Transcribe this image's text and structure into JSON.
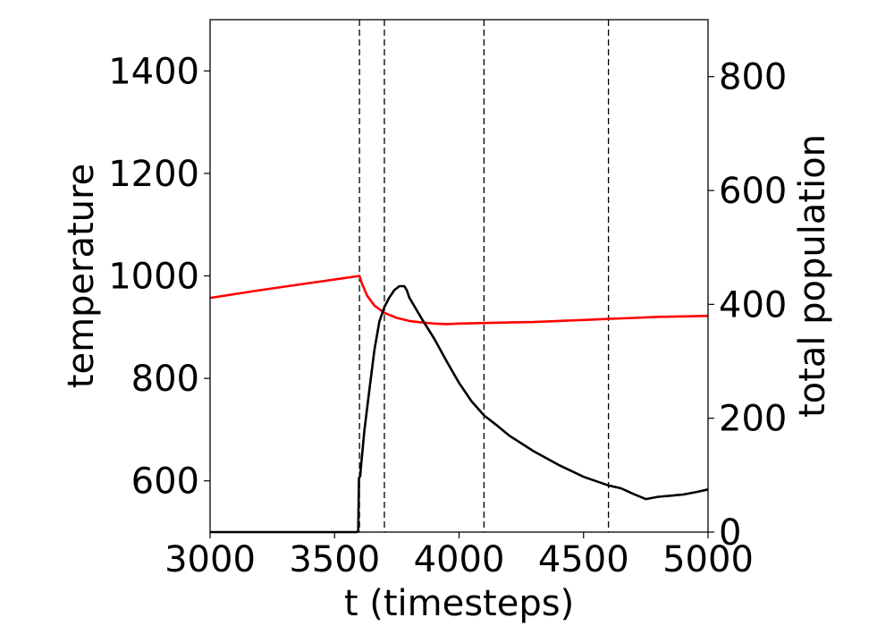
{
  "chart_data": {
    "type": "line",
    "xlabel": "t (timesteps)",
    "ylabel_left": "temperature",
    "ylabel_right": "total population",
    "xlim": [
      3000,
      5000
    ],
    "ylim_left": [
      500,
      1500
    ],
    "ylim_right": [
      0,
      900
    ],
    "xticks": [
      3000,
      3500,
      4000,
      4500,
      5000
    ],
    "yticks_left": [
      600,
      800,
      1000,
      1200,
      1400
    ],
    "yticks_right": [
      0,
      200,
      400,
      600,
      800
    ],
    "grid": false,
    "vlines": [
      3600,
      3700,
      4100,
      4600
    ],
    "colors": {
      "temperature": "#ff0000",
      "population": "#000000",
      "vline": "#000000"
    },
    "series": [
      {
        "axis": "left",
        "points": [
          [
            3000,
            957
          ],
          [
            3200,
            972
          ],
          [
            3400,
            986
          ],
          [
            3600,
            1000
          ],
          [
            3610,
            985
          ],
          [
            3630,
            962
          ],
          [
            3660,
            942
          ],
          [
            3700,
            928
          ],
          [
            3750,
            918
          ],
          [
            3800,
            912
          ],
          [
            3850,
            909
          ],
          [
            3900,
            907
          ],
          [
            3950,
            906
          ],
          [
            4000,
            907
          ],
          [
            4100,
            908
          ],
          [
            4200,
            909
          ],
          [
            4300,
            910
          ],
          [
            4400,
            912
          ],
          [
            4500,
            914
          ],
          [
            4600,
            916
          ],
          [
            4700,
            918
          ],
          [
            4800,
            920
          ],
          [
            4900,
            921
          ],
          [
            5000,
            922
          ]
        ]
      },
      {
        "axis": "right",
        "points": [
          [
            3000,
            0
          ],
          [
            3590,
            0
          ],
          [
            3595,
            2
          ],
          [
            3598,
            95
          ],
          [
            3603,
            98
          ],
          [
            3606,
            115
          ],
          [
            3620,
            180
          ],
          [
            3640,
            250
          ],
          [
            3660,
            320
          ],
          [
            3680,
            370
          ],
          [
            3700,
            395
          ],
          [
            3720,
            412
          ],
          [
            3740,
            425
          ],
          [
            3760,
            432
          ],
          [
            3780,
            432
          ],
          [
            3790,
            425
          ],
          [
            3800,
            412
          ],
          [
            3850,
            375
          ],
          [
            3900,
            340
          ],
          [
            3950,
            300
          ],
          [
            4000,
            262
          ],
          [
            4050,
            230
          ],
          [
            4100,
            205
          ],
          [
            4150,
            188
          ],
          [
            4200,
            170
          ],
          [
            4300,
            142
          ],
          [
            4400,
            118
          ],
          [
            4500,
            97
          ],
          [
            4600,
            82
          ],
          [
            4650,
            77
          ],
          [
            4700,
            67
          ],
          [
            4750,
            58
          ],
          [
            4800,
            62
          ],
          [
            4850,
            64
          ],
          [
            4900,
            66
          ],
          [
            4950,
            70
          ],
          [
            5000,
            75
          ]
        ]
      }
    ]
  }
}
